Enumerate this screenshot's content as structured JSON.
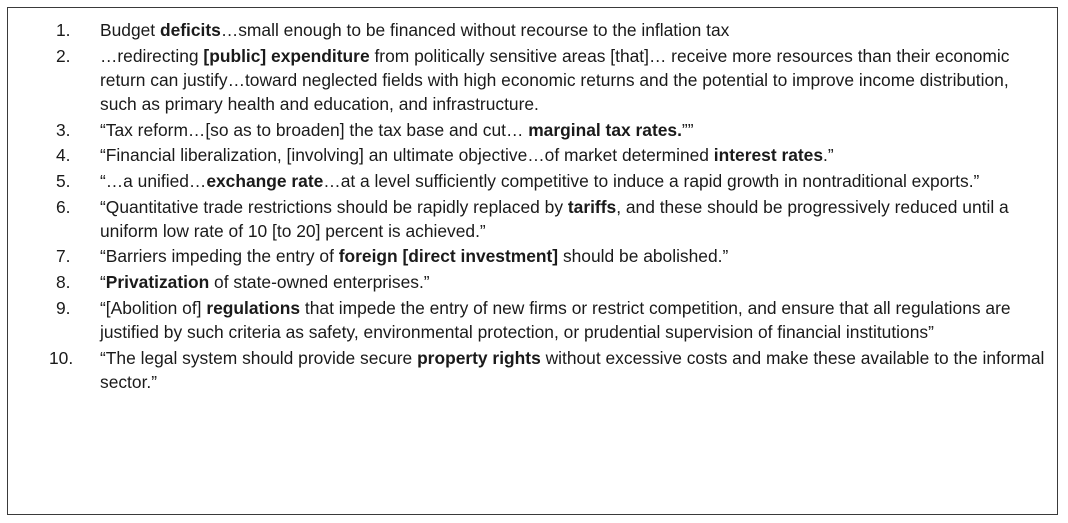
{
  "items": [
    {
      "number": "1.",
      "parts": [
        {
          "text": "Budget ",
          "bold": false
        },
        {
          "text": "deficits",
          "bold": true
        },
        {
          "text": "…small enough to be financed without recourse to the inflation tax",
          "bold": false
        }
      ]
    },
    {
      "number": "2.",
      "parts": [
        {
          "text": "…redirecting ",
          "bold": false
        },
        {
          "text": "[public] expenditure",
          "bold": true
        },
        {
          "text": " from politically sensitive areas [that]… receive more resources than their economic return can justify…toward neglected fields with high economic returns and the potential to improve income distribution, such as primary health and education, and infrastructure.",
          "bold": false
        }
      ]
    },
    {
      "number": "3.",
      "parts": [
        {
          "text": "“Tax reform…[so as to broaden] the tax base and cut… ",
          "bold": false
        },
        {
          "text": "marginal tax rates.",
          "bold": true
        },
        {
          "text": "””",
          "bold": false
        }
      ]
    },
    {
      "number": "4.",
      "parts": [
        {
          "text": "“Financial liberalization, [involving] an ultimate objective…of market determined ",
          "bold": false
        },
        {
          "text": "interest rates",
          "bold": true
        },
        {
          "text": ".”",
          "bold": false
        }
      ]
    },
    {
      "number": "5.",
      "parts": [
        {
          "text": "“…a unified…",
          "bold": false
        },
        {
          "text": "exchange rate",
          "bold": true
        },
        {
          "text": "…at a level sufficiently competitive to induce a rapid growth in nontraditional exports.”",
          "bold": false
        }
      ]
    },
    {
      "number": "6.",
      "parts": [
        {
          "text": "“Quantitative trade restrictions should be rapidly replaced by ",
          "bold": false
        },
        {
          "text": "tariffs",
          "bold": true
        },
        {
          "text": ", and these should be progressively reduced until a uniform low rate of 10 [to 20] percent is achieved.”",
          "bold": false
        }
      ]
    },
    {
      "number": "7.",
      "parts": [
        {
          "text": "“Barriers impeding the entry of ",
          "bold": false
        },
        {
          "text": "foreign [direct investment]",
          "bold": true
        },
        {
          "text": " should be abolished.”",
          "bold": false
        }
      ]
    },
    {
      "number": "8.",
      "parts": [
        {
          "text": "“",
          "bold": false
        },
        {
          "text": "Privatization",
          "bold": true
        },
        {
          "text": " of state-owned enterprises.”",
          "bold": false
        }
      ]
    },
    {
      "number": "9.",
      "parts": [
        {
          "text": "“[Abolition of] ",
          "bold": false
        },
        {
          "text": "regulations",
          "bold": true
        },
        {
          "text": " that impede the entry of new firms or restrict competition, and ensure that all regulations are justified by such criteria as safety, environmental protection, or prudential supervision of financial institutions”",
          "bold": false
        }
      ]
    },
    {
      "number": "10.",
      "parts": [
        {
          "text": "“The legal system should provide secure ",
          "bold": false
        },
        {
          "text": "property rights",
          "bold": true
        },
        {
          "text": " without excessive costs and make these available to the informal sector.”",
          "bold": false
        }
      ]
    }
  ]
}
